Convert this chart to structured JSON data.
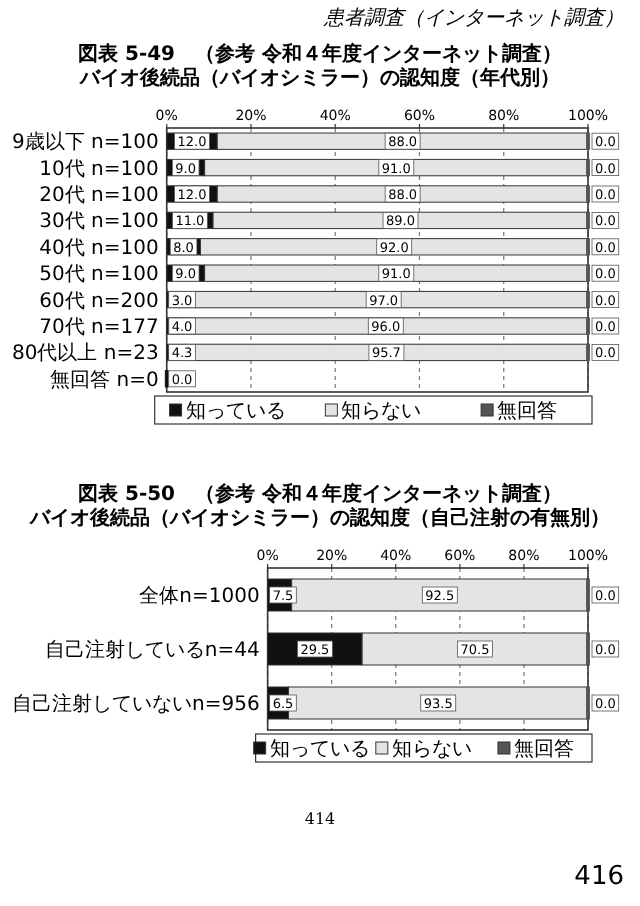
{
  "chart_data": [
    {
      "type": "bar",
      "orientation": "horizontal",
      "stacked": true,
      "title": "図表 5-49　（参考 令和４年度インターネット調査）",
      "subtitle": "バイオ後続品（バイオシミラー）の認知度（年代別）",
      "annotations": [
        "患者調査（インターネット調査）"
      ],
      "categories": [
        "9歳以下 n=100",
        "10代 n=100",
        "20代 n=100",
        "30代 n=100",
        "40代 n=100",
        "50代 n=100",
        "60代 n=200",
        "70代 n=177",
        "80代以上 n=23",
        "無回答 n=0"
      ],
      "series": [
        {
          "name": "知っている",
          "color": "#111111",
          "values": [
            12.0,
            9.0,
            12.0,
            11.0,
            8.0,
            9.0,
            3.0,
            4.0,
            4.3,
            0.0
          ],
          "value_labels": [
            "12.0",
            "9.0",
            "12.0",
            "11.0",
            "8.0",
            "9.0",
            "3.0",
            "4.0",
            "4.3",
            "0.0"
          ]
        },
        {
          "name": "知らない",
          "color": "#e4e4e4",
          "values": [
            88.0,
            91.0,
            88.0,
            89.0,
            92.0,
            91.0,
            97.0,
            96.0,
            95.7,
            null
          ],
          "value_labels": [
            "88.0",
            "91.0",
            "88.0",
            "89.0",
            "92.0",
            "91.0",
            "97.0",
            "96.0",
            "95.7",
            null
          ]
        },
        {
          "name": "無回答",
          "color": "#555555",
          "values": [
            0.0,
            0.0,
            0.0,
            0.0,
            0.0,
            0.0,
            0.0,
            0.0,
            0.0,
            null
          ],
          "value_labels": [
            "0.0",
            "0.0",
            "0.0",
            "0.0",
            "0.0",
            "0.0",
            "0.0",
            "0.0",
            "0.0",
            null
          ]
        }
      ],
      "xlim": [
        0,
        100
      ],
      "xticks": [
        {
          "value": 0,
          "label": "0%"
        },
        {
          "value": 20,
          "label": "20%"
        },
        {
          "value": 40,
          "label": "40%"
        },
        {
          "value": 60,
          "label": "60%"
        },
        {
          "value": 80,
          "label": "80%"
        },
        {
          "value": 100,
          "label": "100%"
        }
      ],
      "grid": "x",
      "legend": "bottom"
    },
    {
      "type": "bar",
      "orientation": "horizontal",
      "stacked": true,
      "title": "図表 5-50　（参考 令和４年度インターネット調査）",
      "subtitle": "バイオ後続品（バイオシミラー）の認知度（自己注射の有無別）",
      "annotations": [
        "414",
        "416"
      ],
      "categories": [
        "全体n=1000",
        "自己注射しているn=44",
        "自己注射していないn=956"
      ],
      "series": [
        {
          "name": "知っている",
          "color": "#111111",
          "values": [
            7.5,
            29.5,
            6.5
          ],
          "value_labels": [
            "7.5",
            "29.5",
            "6.5"
          ]
        },
        {
          "name": "知らない",
          "color": "#e4e4e4",
          "values": [
            92.5,
            70.5,
            93.5
          ],
          "value_labels": [
            "92.5",
            "70.5",
            "93.5"
          ]
        },
        {
          "name": "無回答",
          "color": "#555555",
          "values": [
            0.0,
            0.0,
            0.0
          ],
          "value_labels": [
            "0.0",
            "0.0",
            "0.0"
          ]
        }
      ],
      "xlim": [
        0,
        100
      ],
      "xticks": [
        {
          "value": 0,
          "label": "0%"
        },
        {
          "value": 20,
          "label": "20%"
        },
        {
          "value": 40,
          "label": "40%"
        },
        {
          "value": 60,
          "label": "60%"
        },
        {
          "value": 80,
          "label": "80%"
        },
        {
          "value": 100,
          "label": "100%"
        }
      ],
      "grid": "x",
      "legend": "bottom"
    }
  ]
}
